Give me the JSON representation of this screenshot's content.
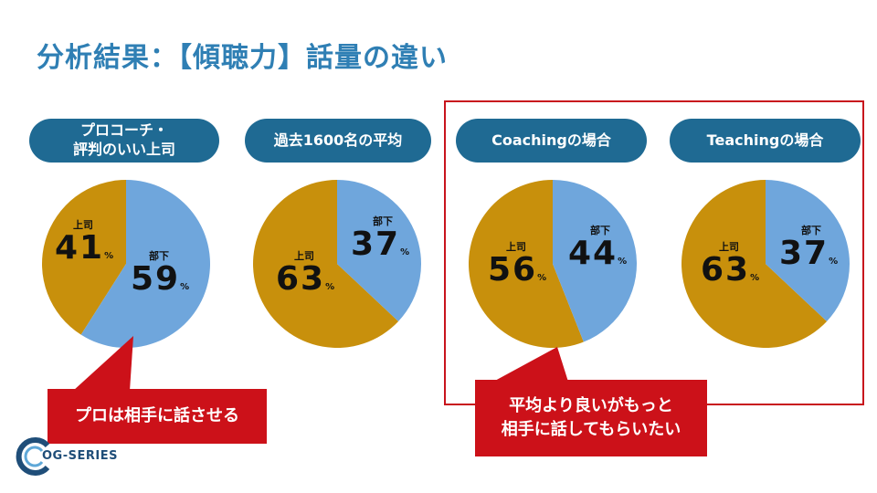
{
  "title": "分析結果：【傾聴力】話量の違い",
  "colors": {
    "boss": "#c8900c",
    "subordinate": "#6fa6dc",
    "pill": "#1f6a93",
    "accent": "#cc1119",
    "title": "#2f7fb4"
  },
  "groups": [
    {
      "label_line1": "プロコーチ・",
      "label_line2": "評判のいい上司",
      "boss_label": "上司",
      "boss_value": "41",
      "sub_label": "部下",
      "sub_value": "59",
      "pct": "%"
    },
    {
      "label_line1": "過去1600名の平均",
      "label_line2": "",
      "boss_label": "上司",
      "boss_value": "63",
      "sub_label": "部下",
      "sub_value": "37",
      "pct": "%"
    },
    {
      "label_line1": "Coachingの場合",
      "label_line2": "",
      "boss_label": "上司",
      "boss_value": "56",
      "sub_label": "部下",
      "sub_value": "44",
      "pct": "%"
    },
    {
      "label_line1": "Teachingの場合",
      "label_line2": "",
      "boss_label": "上司",
      "boss_value": "63",
      "sub_label": "部下",
      "sub_value": "37",
      "pct": "%"
    }
  ],
  "callouts": {
    "left": "プロは相手に話させる",
    "right_line1": "平均より良いがもっと",
    "right_line2": "相手に話してもらいたい"
  },
  "logo": {
    "text": "OG-SERIES"
  }
}
